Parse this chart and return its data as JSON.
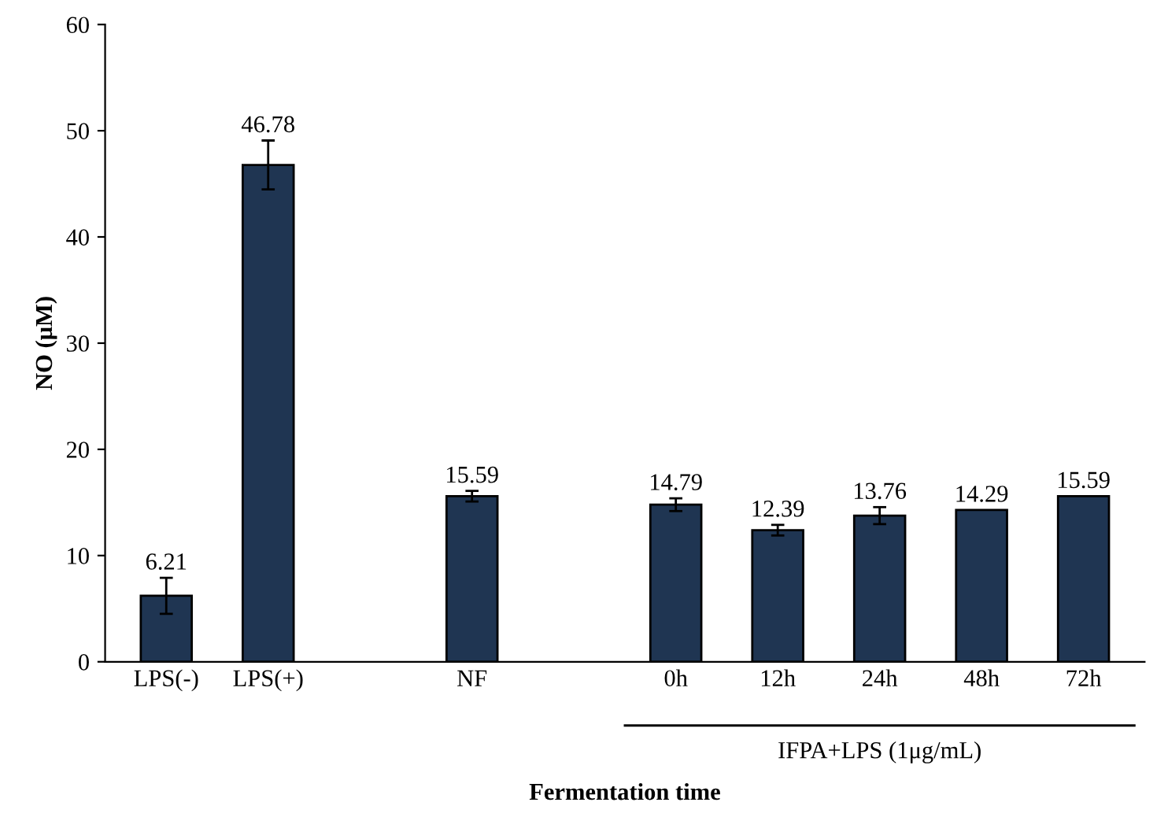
{
  "chart_data": {
    "type": "bar",
    "xlabel": "Fermentation time",
    "ylabel": "NO (μM)",
    "categories": [
      "LPS(-)",
      "LPS(+)",
      null,
      "NF",
      null,
      "0h",
      "12h",
      "24h",
      "48h",
      "72h"
    ],
    "values": [
      6.21,
      46.78,
      null,
      15.59,
      null,
      14.79,
      12.39,
      13.76,
      14.29,
      15.59
    ],
    "errors": [
      1.7,
      2.3,
      null,
      0.5,
      null,
      0.6,
      0.5,
      0.8,
      null,
      null
    ],
    "color": "#1f3552",
    "data_labels": true,
    "grid": false,
    "legend": false,
    "ylim": [
      0,
      60
    ],
    "yticks": [
      0,
      10,
      20,
      30,
      40,
      50,
      60
    ],
    "annotations": [
      "IFPA+LPS (1μg/mL)"
    ]
  }
}
